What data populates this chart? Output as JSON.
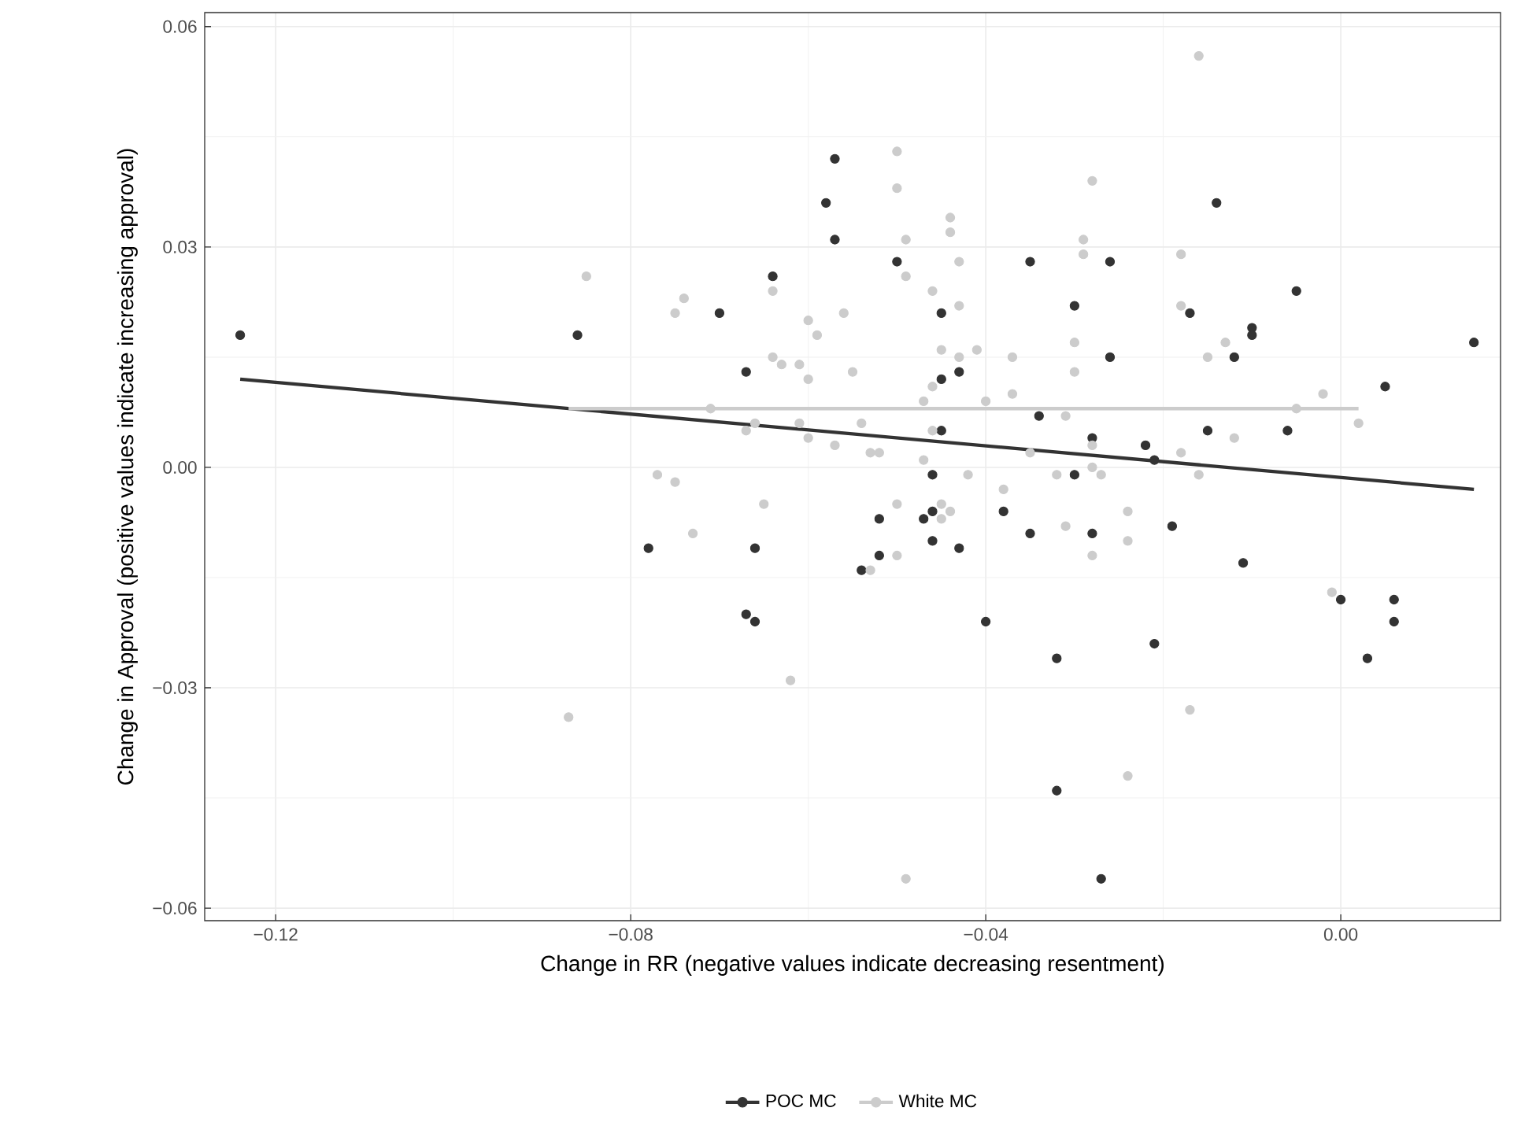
{
  "chart_data": {
    "type": "scatter",
    "xlabel": "Change in RR (negative values indicate decreasing resentment)",
    "ylabel": "Change in Approval (positive values indicate increasing approval)",
    "xlim": [
      -0.128,
      0.018
    ],
    "ylim": [
      -0.0617,
      0.0619
    ],
    "xticks": [
      {
        "value": -0.12,
        "label": "−0.12"
      },
      {
        "value": -0.08,
        "label": "−0.08"
      },
      {
        "value": -0.04,
        "label": "−0.04"
      },
      {
        "value": 0,
        "label": "0.00"
      }
    ],
    "yticks": [
      {
        "value": -0.06,
        "label": "−0.06"
      },
      {
        "value": -0.03,
        "label": "−0.03"
      },
      {
        "value": 0,
        "label": "0.00"
      },
      {
        "value": 0.03,
        "label": "0.03"
      },
      {
        "value": 0.06,
        "label": "0.06"
      }
    ],
    "grid": true,
    "legend": "bottom",
    "series": [
      {
        "name": "POC MC",
        "color": "#333333",
        "marker": "circle",
        "x": [
          -0.124,
          -0.086,
          -0.057,
          -0.058,
          -0.057,
          -0.064,
          -0.07,
          -0.05,
          -0.045,
          -0.067,
          -0.045,
          -0.043,
          -0.035,
          -0.03,
          -0.045,
          -0.034,
          -0.028,
          -0.046,
          -0.03,
          -0.014,
          -0.026,
          -0.005,
          -0.017,
          -0.01,
          -0.01,
          -0.026,
          -0.012,
          0.015,
          0.005,
          -0.015,
          -0.006,
          -0.022,
          -0.021,
          -0.078,
          -0.046,
          -0.047,
          -0.052,
          -0.038,
          -0.035,
          -0.028,
          -0.066,
          -0.052,
          -0.054,
          -0.046,
          -0.043,
          -0.067,
          -0.066,
          -0.04,
          -0.032,
          -0.032,
          -0.027,
          -0.019,
          -0.011,
          0.0,
          0.006,
          0.006,
          0.003,
          -0.021
        ],
        "values": [
          0.018,
          0.018,
          0.042,
          0.036,
          0.031,
          0.026,
          0.021,
          0.028,
          0.021,
          0.013,
          0.012,
          0.013,
          0.028,
          0.022,
          0.005,
          0.007,
          0.004,
          -0.001,
          -0.001,
          0.036,
          0.028,
          0.024,
          0.021,
          0.019,
          0.018,
          0.015,
          0.015,
          0.017,
          0.011,
          0.005,
          0.005,
          0.003,
          0.001,
          -0.011,
          -0.006,
          -0.007,
          -0.007,
          -0.006,
          -0.009,
          -0.009,
          -0.011,
          -0.012,
          -0.014,
          -0.01,
          -0.011,
          -0.02,
          -0.021,
          -0.021,
          -0.026,
          -0.044,
          -0.056,
          -0.008,
          -0.013,
          -0.018,
          -0.018,
          -0.021,
          -0.026,
          -0.024
        ]
      },
      {
        "name": "White MC",
        "color": "#cccccc",
        "marker": "circle",
        "x": [
          -0.085,
          -0.075,
          -0.077,
          -0.05,
          -0.05,
          -0.049,
          -0.044,
          -0.044,
          -0.043,
          -0.049,
          -0.046,
          -0.043,
          -0.064,
          -0.074,
          -0.06,
          -0.059,
          -0.056,
          -0.045,
          -0.041,
          -0.043,
          -0.037,
          -0.03,
          -0.03,
          -0.064,
          -0.063,
          -0.061,
          -0.06,
          -0.055,
          -0.047,
          -0.046,
          -0.04,
          -0.037,
          -0.071,
          -0.066,
          -0.067,
          -0.061,
          -0.06,
          -0.057,
          -0.054,
          -0.053,
          -0.052,
          -0.046,
          -0.047,
          -0.042,
          -0.035,
          -0.032,
          -0.031,
          -0.028,
          -0.029,
          -0.029,
          -0.028,
          -0.016,
          -0.018,
          -0.018,
          -0.013,
          -0.015,
          -0.002,
          -0.005,
          0.002,
          -0.012,
          -0.018,
          -0.016,
          -0.028,
          -0.075,
          -0.087,
          -0.073,
          -0.065,
          -0.05,
          -0.045,
          -0.044,
          -0.045,
          -0.05,
          -0.053,
          -0.038,
          -0.031,
          -0.028,
          -0.062,
          -0.049,
          -0.027,
          -0.024,
          -0.024,
          -0.001,
          -0.017,
          -0.024
        ],
        "values": [
          0.026,
          0.021,
          -0.001,
          0.043,
          0.038,
          0.031,
          0.034,
          0.032,
          0.028,
          0.026,
          0.024,
          0.022,
          0.024,
          0.023,
          0.02,
          0.018,
          0.021,
          0.016,
          0.016,
          0.015,
          0.015,
          0.017,
          0.013,
          0.015,
          0.014,
          0.014,
          0.012,
          0.013,
          0.009,
          0.011,
          0.009,
          0.01,
          0.008,
          0.006,
          0.005,
          0.006,
          0.004,
          0.003,
          0.006,
          0.002,
          0.002,
          0.005,
          0.001,
          -0.001,
          0.002,
          -0.001,
          0.007,
          0.039,
          0.031,
          0.029,
          0.0,
          0.056,
          0.029,
          0.022,
          0.017,
          0.015,
          0.01,
          0.008,
          0.006,
          0.004,
          0.002,
          -0.001,
          0.003,
          -0.002,
          -0.034,
          -0.009,
          -0.005,
          -0.005,
          -0.005,
          -0.006,
          -0.007,
          -0.012,
          -0.014,
          -0.003,
          -0.008,
          -0.012,
          -0.029,
          -0.056,
          -0.001,
          -0.006,
          -0.01,
          -0.017,
          -0.033,
          -0.042
        ]
      },
      {
        "color": "#333333",
        "type": "line",
        "marker": "none",
        "x": [
          -0.124,
          0.015
        ],
        "values": [
          0.012,
          -0.003
        ]
      },
      {
        "color": "#cccccc",
        "type": "line",
        "marker": "none",
        "x": [
          -0.087,
          0.002
        ],
        "values": [
          0.008,
          0.008
        ]
      }
    ]
  }
}
